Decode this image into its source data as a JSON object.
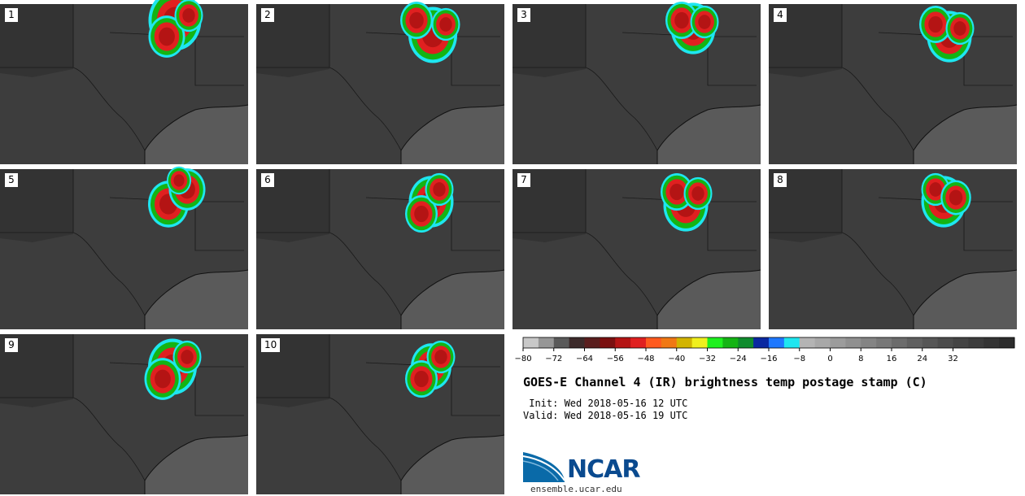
{
  "panels": [
    {
      "label": "1"
    },
    {
      "label": "2"
    },
    {
      "label": "3"
    },
    {
      "label": "4"
    },
    {
      "label": "5"
    },
    {
      "label": "6"
    },
    {
      "label": "7"
    },
    {
      "label": "8"
    },
    {
      "label": "9"
    },
    {
      "label": "10"
    }
  ],
  "colorbar": {
    "ticks": [
      "−80",
      "−72",
      "−64",
      "−56",
      "−48",
      "−40",
      "−32",
      "−24",
      "−16",
      "−8",
      "0",
      "8",
      "16",
      "24",
      "32"
    ],
    "colors": [
      "#c8c8c8",
      "#969696",
      "#5a5a5a",
      "#3c2a2a",
      "#5a1e1e",
      "#7a0f0f",
      "#b41414",
      "#e02020",
      "#ff5a1e",
      "#f07814",
      "#d2b400",
      "#f0f01e",
      "#1ef01e",
      "#14b414",
      "#0f8c2d",
      "#0a28a0",
      "#1e78ff",
      "#1ee6f0",
      "#b4b4b4",
      "#a8a8a8",
      "#9c9c9c",
      "#909090",
      "#848484",
      "#787878",
      "#6c6c6c",
      "#606060",
      "#565656",
      "#4c4c4c",
      "#444444",
      "#3c3c3c",
      "#343434",
      "#2c2c2c"
    ]
  },
  "title": "GOES-E Channel 4 (IR) brightness temp postage stamp (C)",
  "init": " Init: Wed 2018-05-16 12 UTC",
  "valid": "Valid: Wed 2018-05-16 19 UTC",
  "logo": {
    "text": "NCAR",
    "color": "#0a4a8f"
  },
  "site": "ensemble.ucar.edu"
}
